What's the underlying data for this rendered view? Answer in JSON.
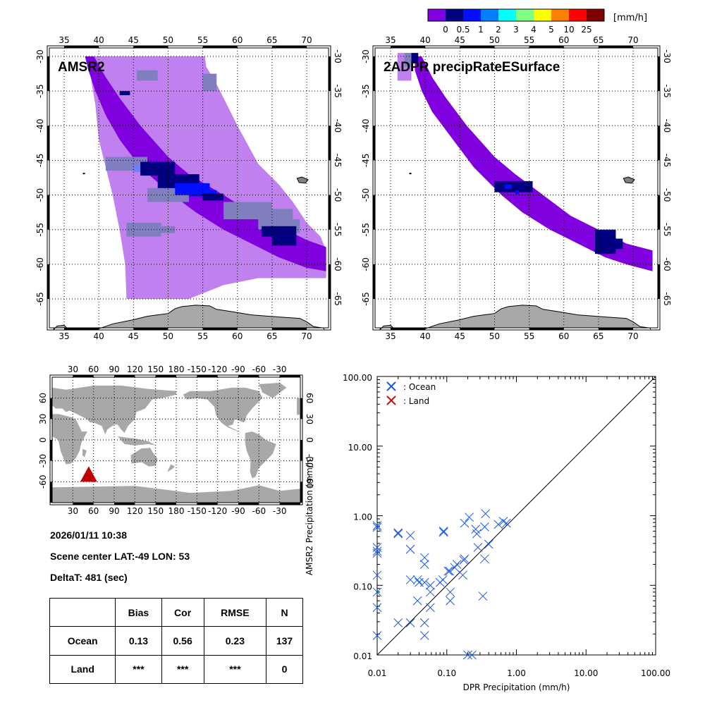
{
  "colorbar": {
    "unit": "[mm/h]",
    "colors": [
      "#8000e0",
      "#000080",
      "#0010ff",
      "#0080ff",
      "#00ffff",
      "#80ff80",
      "#ffff00",
      "#ff8000",
      "#ff0000",
      "#800000"
    ],
    "tick_labels": [
      "0",
      "0.5",
      "1",
      "2",
      "3",
      "4",
      "5",
      "10",
      "25"
    ]
  },
  "map_left": {
    "title": "AMSR2",
    "lon_ticks": [
      "35",
      "40",
      "45",
      "50",
      "55",
      "60",
      "65",
      "70"
    ],
    "lat_ticks": [
      "-30",
      "-35",
      "-40",
      "-45",
      "-50",
      "-55",
      "-60",
      "-65"
    ]
  },
  "map_right": {
    "title": "2ADPR precipRateESurface",
    "lon_ticks": [
      "35",
      "40",
      "45",
      "50",
      "55",
      "60",
      "65",
      "70"
    ],
    "lat_ticks": [
      "-30",
      "-35",
      "-40",
      "-45",
      "-50",
      "-55",
      "-60",
      "-65"
    ]
  },
  "world_map": {
    "lon_ticks": [
      "30",
      "60",
      "90",
      "120",
      "150",
      "180",
      "-150",
      "-120",
      "-90",
      "-60",
      "-30"
    ],
    "lat_ticks": [
      "60",
      "30",
      "0",
      "-30",
      "-60"
    ],
    "marker_color": "#c00000",
    "marker_label": "scene-location"
  },
  "info": {
    "datetime": "2026/01/11 10:38",
    "scene_center": "Scene center LAT:-49   LON:  53",
    "delta_t": "DeltaT:  481 (sec)"
  },
  "stats_table": {
    "headers": [
      "",
      "Bias",
      "Cor",
      "RMSE",
      "N"
    ],
    "rows": [
      [
        "Ocean",
        "0.13",
        "0.56",
        "0.23",
        "137"
      ],
      [
        "Land",
        "***",
        "***",
        "***",
        "0"
      ]
    ]
  },
  "chart_data": {
    "type": "scatter",
    "title": "",
    "xlabel": "DPR Precipitation (mm/h)",
    "ylabel": "AMSR2 Precipitation (mm/h)",
    "xscale": "log",
    "yscale": "log",
    "xlim": [
      0.01,
      100
    ],
    "ylim": [
      0.01,
      100
    ],
    "x_tick_labels": [
      "0.01",
      "0.10",
      "1.00",
      "10.00",
      "100.00"
    ],
    "y_tick_labels": [
      "0.01",
      "0.10",
      "1.00",
      "10.00",
      "100.00"
    ],
    "reference_line": "y = x",
    "legend": [
      {
        "label": ": Ocean",
        "color": "#1a5ae6"
      },
      {
        "label": ": Land",
        "color": "#c01010"
      }
    ],
    "legend_position": "top-left",
    "series": [
      {
        "name": "Ocean",
        "color": "#1a5ae6",
        "points": [
          [
            0.01,
            0.72
          ],
          [
            0.01,
            0.68
          ],
          [
            0.01,
            0.35
          ],
          [
            0.01,
            0.31
          ],
          [
            0.01,
            0.29
          ],
          [
            0.01,
            0.14
          ],
          [
            0.01,
            0.08
          ],
          [
            0.01,
            0.048
          ],
          [
            0.01,
            0.019
          ],
          [
            0.02,
            0.57
          ],
          [
            0.02,
            0.55
          ],
          [
            0.02,
            0.029
          ],
          [
            0.03,
            0.52
          ],
          [
            0.03,
            0.33
          ],
          [
            0.03,
            0.33
          ],
          [
            0.03,
            0.12
          ],
          [
            0.03,
            0.029
          ],
          [
            0.038,
            0.12
          ],
          [
            0.04,
            0.11
          ],
          [
            0.038,
            0.06
          ],
          [
            0.048,
            0.25
          ],
          [
            0.048,
            0.2
          ],
          [
            0.048,
            0.11
          ],
          [
            0.048,
            0.029
          ],
          [
            0.048,
            0.019
          ],
          [
            0.058,
            0.1
          ],
          [
            0.058,
            0.08
          ],
          [
            0.058,
            0.048
          ],
          [
            0.08,
            0.11
          ],
          [
            0.088,
            0.12
          ],
          [
            0.09,
            0.6
          ],
          [
            0.09,
            0.58
          ],
          [
            0.105,
            0.16
          ],
          [
            0.11,
            0.16
          ],
          [
            0.112,
            0.08
          ],
          [
            0.112,
            0.06
          ],
          [
            0.13,
            0.18
          ],
          [
            0.14,
            0.2
          ],
          [
            0.17,
            0.14
          ],
          [
            0.175,
            0.23
          ],
          [
            0.18,
            0.24
          ],
          [
            0.18,
            0.78
          ],
          [
            0.21,
            0.95
          ],
          [
            0.2,
            0.01
          ],
          [
            0.23,
            0.01
          ],
          [
            0.26,
            0.64
          ],
          [
            0.27,
            0.55
          ],
          [
            0.28,
            0.35
          ],
          [
            0.33,
            0.07
          ],
          [
            0.35,
            0.24
          ],
          [
            0.35,
            0.69
          ],
          [
            0.36,
            1.07
          ],
          [
            0.4,
            0.39
          ],
          [
            0.55,
            0.75
          ],
          [
            0.65,
            0.83
          ],
          [
            0.72,
            0.78
          ]
        ]
      },
      {
        "name": "Land",
        "color": "#c01010",
        "points": []
      }
    ]
  }
}
